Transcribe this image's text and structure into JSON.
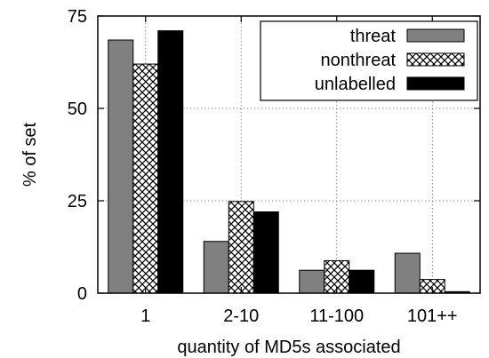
{
  "chart_data": {
    "type": "bar",
    "title": "",
    "xlabel": "quantity of MD5s associated",
    "ylabel": "% of set",
    "ylim": [
      0,
      75
    ],
    "yticks": [
      0,
      25,
      50,
      75
    ],
    "grid": true,
    "legend_position": "top-right",
    "categories": [
      "1",
      "2-10",
      "11-100",
      "101++"
    ],
    "series": [
      {
        "name": "threat",
        "values": [
          68.5,
          14,
          6.2,
          10.8
        ],
        "color": "#808080",
        "pattern": "solid"
      },
      {
        "name": "nonthreat",
        "values": [
          62,
          24.8,
          8.8,
          3.7
        ],
        "color": "#ffffff",
        "pattern": "crosshatch"
      },
      {
        "name": "unlabelled",
        "values": [
          71,
          22,
          6.2,
          0.4
        ],
        "color": "#000000",
        "pattern": "solid"
      }
    ]
  }
}
